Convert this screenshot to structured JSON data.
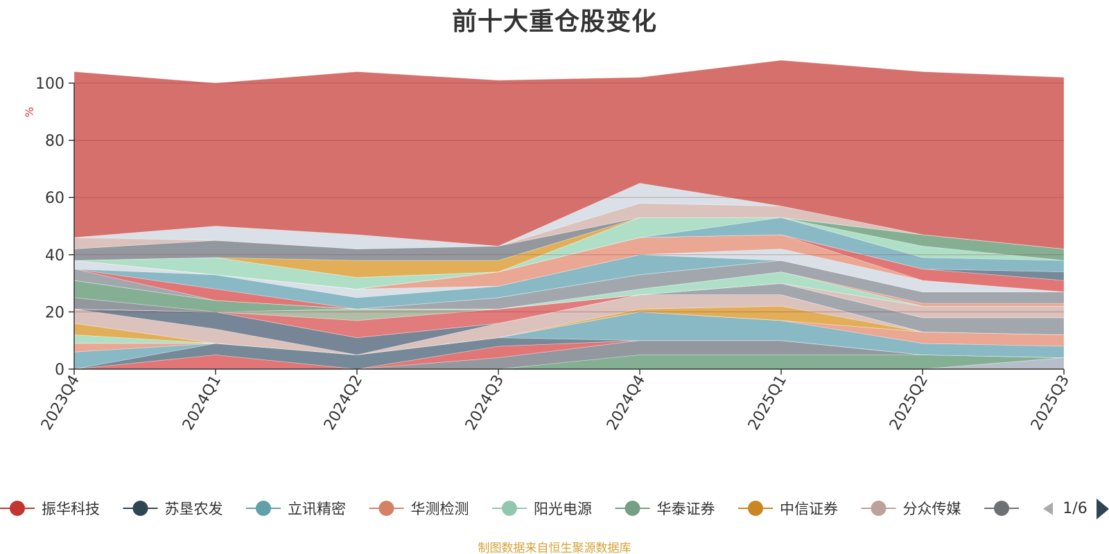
{
  "title": "前十大重仓股变化",
  "source_note": "制图数据来自恒生聚源数据库",
  "legend_page": "1/6",
  "chart_data": {
    "type": "area",
    "title": "前十大重仓股变化",
    "ylabel": "%",
    "ylim": [
      0,
      100
    ],
    "yticks": [
      0,
      20,
      40,
      60,
      80,
      100
    ],
    "grid": true,
    "legend_position": "bottom",
    "categories": [
      "2023Q4",
      "2024Q1",
      "2024Q2",
      "2024Q3",
      "2024Q4",
      "2025Q1",
      "2025Q2",
      "2025Q3"
    ],
    "series": [
      {
        "name": "",
        "color": "#b0b8c4",
        "values": [
          0,
          0,
          0,
          0,
          0,
          0,
          0,
          4
        ]
      },
      {
        "name": "",
        "color": "#7aa88a",
        "values": [
          0,
          0,
          0,
          0,
          5,
          5,
          5,
          0
        ]
      },
      {
        "name": "",
        "color": "#8a8f97",
        "values": [
          0,
          0,
          0,
          4,
          5,
          5,
          0,
          0
        ]
      },
      {
        "name": "",
        "color": "#e06a6a",
        "values": [
          0,
          5,
          0,
          4,
          0,
          0,
          0,
          0
        ]
      },
      {
        "name": "",
        "color": "#6a7f8f",
        "values": [
          0,
          4,
          5,
          3,
          0,
          0,
          0,
          0
        ]
      },
      {
        "name": "",
        "color": "#7fb3c0",
        "values": [
          6,
          0,
          0,
          0,
          10,
          7,
          4,
          4
        ]
      },
      {
        "name": "",
        "color": "#e8a08a",
        "values": [
          3,
          0,
          0,
          0,
          0,
          0,
          4,
          4
        ]
      },
      {
        "name": "",
        "color": "#a8dcc2",
        "values": [
          3,
          0,
          0,
          0,
          0,
          0,
          0,
          0
        ]
      },
      {
        "name": "",
        "color": "#e0a84a",
        "values": [
          4,
          0,
          0,
          0,
          1,
          5,
          0,
          0
        ]
      },
      {
        "name": "",
        "color": "#d9bdb6",
        "values": [
          5,
          5,
          0,
          5,
          5,
          4,
          0,
          0
        ]
      },
      {
        "name": "",
        "color": "#6b7c8d",
        "values": [
          0,
          6,
          6,
          0,
          0,
          0,
          0,
          0
        ]
      },
      {
        "name": "",
        "color": "#9a9ea6",
        "values": [
          0,
          0,
          0,
          0,
          0,
          4,
          5,
          6
        ]
      },
      {
        "name": "",
        "color": "#e07070",
        "values": [
          0,
          0,
          6,
          5,
          0,
          0,
          0,
          0
        ]
      },
      {
        "name": "",
        "color": "#a8b8a0",
        "values": [
          0,
          0,
          4,
          0,
          0,
          0,
          0,
          0
        ]
      },
      {
        "name": "",
        "color": "#d9bdb6",
        "values": [
          0,
          0,
          0,
          0,
          0,
          0,
          4,
          4
        ]
      },
      {
        "name": "",
        "color": "#8a8f97",
        "values": [
          4,
          0,
          0,
          0,
          0,
          0,
          0,
          0
        ]
      },
      {
        "name": "",
        "color": "#7aa88a",
        "values": [
          6,
          4,
          0,
          0,
          0,
          0,
          0,
          0
        ]
      },
      {
        "name": "",
        "color": "#a8dcc2",
        "values": [
          0,
          0,
          0,
          0,
          2,
          4,
          0,
          0
        ]
      },
      {
        "name": "",
        "color": "#e8a08a",
        "values": [
          0,
          0,
          0,
          0,
          0,
          0,
          1,
          1
        ]
      },
      {
        "name": "",
        "color": "#9a9ea6",
        "values": [
          4,
          0,
          0,
          4,
          5,
          4,
          4,
          4
        ]
      },
      {
        "name": "",
        "color": "#e06a6a",
        "values": [
          0,
          4,
          0,
          0,
          0,
          0,
          0,
          0
        ]
      },
      {
        "name": "",
        "color": "#7fb3c0",
        "values": [
          0,
          5,
          4,
          4,
          7,
          0,
          0,
          0
        ]
      },
      {
        "name": "",
        "color": "#d6dde5",
        "values": [
          3,
          0,
          3,
          0,
          0,
          4,
          4,
          0
        ]
      },
      {
        "name": "",
        "color": "#e8a08a",
        "values": [
          0,
          0,
          0,
          5,
          6,
          5,
          0,
          0
        ]
      },
      {
        "name": "",
        "color": "#e06a6a",
        "values": [
          0,
          0,
          0,
          0,
          0,
          0,
          4,
          4
        ]
      },
      {
        "name": "",
        "color": "#6a7f8f",
        "values": [
          0,
          0,
          0,
          0,
          0,
          0,
          0,
          3
        ]
      },
      {
        "name": "",
        "color": "#7fb3c0",
        "values": [
          0,
          0,
          0,
          0,
          0,
          6,
          4,
          4
        ]
      },
      {
        "name": "",
        "color": "#a8dcc2",
        "values": [
          0,
          6,
          4,
          0,
          7,
          0,
          4,
          0
        ]
      },
      {
        "name": "",
        "color": "#7aa88a",
        "values": [
          0,
          0,
          0,
          0,
          0,
          0,
          4,
          4
        ]
      },
      {
        "name": "",
        "color": "#e0a84a",
        "values": [
          0,
          0,
          6,
          4,
          0,
          0,
          0,
          0
        ]
      },
      {
        "name": "",
        "color": "#8a8f97",
        "values": [
          4,
          6,
          4,
          5,
          0,
          0,
          0,
          0
        ]
      },
      {
        "name": "",
        "color": "#d9bdb6",
        "values": [
          4,
          0,
          0,
          0,
          5,
          4,
          0,
          0
        ]
      },
      {
        "name": "",
        "color": "#d6dde5",
        "values": [
          0,
          5,
          5,
          0,
          7,
          0,
          0,
          0
        ]
      },
      {
        "name": "",
        "color": "#d6706c",
        "values": [
          58,
          50,
          57,
          58,
          37,
          51,
          57,
          60
        ]
      }
    ],
    "legend": [
      {
        "name": "振华科技",
        "color": "#c23531"
      },
      {
        "name": "苏垦农发",
        "color": "#2f4554"
      },
      {
        "name": "立讯精密",
        "color": "#61a0a8"
      },
      {
        "name": "华测检测",
        "color": "#d48265"
      },
      {
        "name": "阳光电源",
        "color": "#91c7ae"
      },
      {
        "name": "华泰证券",
        "color": "#749f83"
      },
      {
        "name": "中信证券",
        "color": "#ca8622"
      },
      {
        "name": "分众传媒",
        "color": "#bda29a"
      },
      {
        "name": "",
        "color": "#6e7074"
      }
    ]
  }
}
